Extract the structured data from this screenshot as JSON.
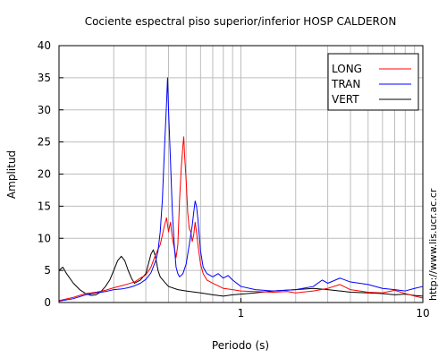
{
  "chart_data": {
    "type": "line",
    "title": "Cociente espectral piso superior/inferior  HOSP CALDERON",
    "xlabel": "Periodo (s)",
    "ylabel": "Amplitud",
    "x_scale": "log",
    "xlim": [
      0.1,
      10
    ],
    "ylim": [
      0,
      40
    ],
    "x_ticks": [
      {
        "value": 1,
        "label": "1"
      },
      {
        "value": 10,
        "label": "10"
      }
    ],
    "y_ticks": [
      0,
      5,
      10,
      15,
      20,
      25,
      30,
      35,
      40
    ],
    "grid": true,
    "legend_position": "top-right",
    "watermark": "http://www.lis.ucr.ac.cr",
    "series": [
      {
        "name": "LONG",
        "color": "#ff0000",
        "points": [
          [
            0.1,
            0.3
          ],
          [
            0.12,
            0.8
          ],
          [
            0.14,
            1.4
          ],
          [
            0.16,
            1.6
          ],
          [
            0.18,
            1.9
          ],
          [
            0.2,
            2.3
          ],
          [
            0.22,
            2.6
          ],
          [
            0.24,
            2.9
          ],
          [
            0.26,
            3.2
          ],
          [
            0.28,
            3.8
          ],
          [
            0.3,
            4.3
          ],
          [
            0.32,
            5.5
          ],
          [
            0.34,
            7.5
          ],
          [
            0.36,
            9.0
          ],
          [
            0.37,
            10.5
          ],
          [
            0.38,
            12.0
          ],
          [
            0.39,
            13.2
          ],
          [
            0.4,
            11.0
          ],
          [
            0.41,
            12.5
          ],
          [
            0.42,
            10.0
          ],
          [
            0.43,
            8.5
          ],
          [
            0.44,
            7.0
          ],
          [
            0.45,
            9.0
          ],
          [
            0.46,
            16.0
          ],
          [
            0.47,
            21.0
          ],
          [
            0.48,
            24.5
          ],
          [
            0.485,
            25.8
          ],
          [
            0.49,
            23.0
          ],
          [
            0.5,
            19.0
          ],
          [
            0.51,
            14.0
          ],
          [
            0.52,
            11.5
          ],
          [
            0.53,
            11.0
          ],
          [
            0.54,
            9.5
          ],
          [
            0.55,
            10.5
          ],
          [
            0.56,
            12.5
          ],
          [
            0.57,
            11.0
          ],
          [
            0.58,
            9.0
          ],
          [
            0.6,
            6.0
          ],
          [
            0.62,
            4.5
          ],
          [
            0.65,
            3.5
          ],
          [
            0.7,
            3.0
          ],
          [
            0.8,
            2.2
          ],
          [
            0.9,
            2.0
          ],
          [
            1.0,
            1.8
          ],
          [
            1.2,
            1.7
          ],
          [
            1.5,
            1.6
          ],
          [
            1.8,
            1.7
          ],
          [
            2.0,
            1.5
          ],
          [
            2.5,
            1.8
          ],
          [
            3.0,
            2.2
          ],
          [
            3.5,
            2.8
          ],
          [
            4.0,
            2.0
          ],
          [
            5.0,
            1.6
          ],
          [
            6.0,
            1.5
          ],
          [
            7.0,
            1.9
          ],
          [
            8.0,
            1.4
          ],
          [
            9.0,
            1.0
          ],
          [
            10.0,
            0.7
          ]
        ]
      },
      {
        "name": "TRAN",
        "color": "#0000ff",
        "points": [
          [
            0.1,
            0.2
          ],
          [
            0.12,
            0.6
          ],
          [
            0.14,
            1.2
          ],
          [
            0.16,
            1.5
          ],
          [
            0.18,
            1.7
          ],
          [
            0.2,
            2.0
          ],
          [
            0.22,
            2.1
          ],
          [
            0.24,
            2.3
          ],
          [
            0.26,
            2.6
          ],
          [
            0.28,
            3.0
          ],
          [
            0.3,
            3.6
          ],
          [
            0.32,
            4.6
          ],
          [
            0.34,
            6.5
          ],
          [
            0.35,
            8.0
          ],
          [
            0.36,
            11.0
          ],
          [
            0.37,
            16.0
          ],
          [
            0.38,
            24.0
          ],
          [
            0.39,
            31.0
          ],
          [
            0.395,
            35.0
          ],
          [
            0.4,
            30.0
          ],
          [
            0.41,
            22.0
          ],
          [
            0.42,
            14.0
          ],
          [
            0.43,
            9.0
          ],
          [
            0.44,
            5.5
          ],
          [
            0.45,
            4.5
          ],
          [
            0.46,
            4.0
          ],
          [
            0.48,
            4.5
          ],
          [
            0.5,
            6.0
          ],
          [
            0.52,
            9.0
          ],
          [
            0.54,
            12.0
          ],
          [
            0.55,
            14.0
          ],
          [
            0.56,
            15.8
          ],
          [
            0.57,
            15.0
          ],
          [
            0.58,
            13.0
          ],
          [
            0.6,
            8.0
          ],
          [
            0.62,
            5.5
          ],
          [
            0.65,
            4.5
          ],
          [
            0.7,
            4.0
          ],
          [
            0.75,
            4.5
          ],
          [
            0.8,
            3.8
          ],
          [
            0.85,
            4.2
          ],
          [
            0.9,
            3.5
          ],
          [
            1.0,
            2.5
          ],
          [
            1.2,
            2.0
          ],
          [
            1.5,
            1.8
          ],
          [
            2.0,
            2.0
          ],
          [
            2.5,
            2.5
          ],
          [
            2.8,
            3.5
          ],
          [
            3.0,
            3.0
          ],
          [
            3.5,
            3.8
          ],
          [
            4.0,
            3.2
          ],
          [
            5.0,
            2.8
          ],
          [
            6.0,
            2.2
          ],
          [
            7.0,
            2.0
          ],
          [
            8.0,
            1.8
          ],
          [
            9.0,
            2.2
          ],
          [
            10.0,
            2.5
          ]
        ]
      },
      {
        "name": "VERT",
        "color": "#000000",
        "points": [
          [
            0.1,
            5.0
          ],
          [
            0.105,
            5.5
          ],
          [
            0.11,
            4.5
          ],
          [
            0.12,
            3.0
          ],
          [
            0.13,
            2.0
          ],
          [
            0.14,
            1.4
          ],
          [
            0.15,
            1.1
          ],
          [
            0.16,
            1.2
          ],
          [
            0.17,
            1.7
          ],
          [
            0.18,
            2.5
          ],
          [
            0.19,
            3.5
          ],
          [
            0.2,
            5.0
          ],
          [
            0.21,
            6.5
          ],
          [
            0.22,
            7.2
          ],
          [
            0.23,
            6.5
          ],
          [
            0.24,
            5.0
          ],
          [
            0.25,
            3.8
          ],
          [
            0.26,
            3.0
          ],
          [
            0.28,
            3.5
          ],
          [
            0.3,
            4.5
          ],
          [
            0.31,
            6.0
          ],
          [
            0.32,
            7.5
          ],
          [
            0.33,
            8.2
          ],
          [
            0.34,
            7.0
          ],
          [
            0.35,
            5.0
          ],
          [
            0.36,
            4.0
          ],
          [
            0.38,
            3.2
          ],
          [
            0.4,
            2.5
          ],
          [
            0.45,
            2.0
          ],
          [
            0.5,
            1.8
          ],
          [
            0.6,
            1.5
          ],
          [
            0.7,
            1.2
          ],
          [
            0.8,
            1.0
          ],
          [
            0.9,
            1.2
          ],
          [
            1.0,
            1.3
          ],
          [
            1.2,
            1.5
          ],
          [
            1.5,
            1.8
          ],
          [
            2.0,
            2.0
          ],
          [
            2.5,
            2.2
          ],
          [
            3.0,
            2.0
          ],
          [
            3.5,
            1.8
          ],
          [
            4.0,
            1.6
          ],
          [
            5.0,
            1.5
          ],
          [
            6.0,
            1.4
          ],
          [
            7.0,
            1.2
          ],
          [
            8.0,
            1.3
          ],
          [
            9.0,
            1.1
          ],
          [
            10.0,
            1.0
          ]
        ]
      }
    ]
  }
}
